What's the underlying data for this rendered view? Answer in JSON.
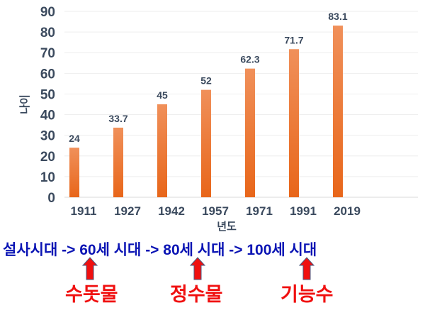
{
  "chart_data": {
    "type": "bar",
    "categories": [
      "1911",
      "1927",
      "1942",
      "1957",
      "1971",
      "1991",
      "2019"
    ],
    "values": [
      24,
      33.7,
      45,
      52,
      62.3,
      71.7,
      83.1
    ],
    "data_labels": [
      "24",
      "33.7",
      "45",
      "52",
      "62.3",
      "71.7",
      "83.1"
    ],
    "xlabel": "년도",
    "ylabel": "나이",
    "ylim": [
      0,
      90
    ],
    "yticks": [
      0,
      10,
      20,
      30,
      40,
      50,
      60,
      70,
      80,
      90
    ],
    "grid": true,
    "bar_color": "#f07b2c"
  },
  "annotation": {
    "eras": "설사시대 -> 60세 시대 -> 80세 시대 -> 100세 시대",
    "labels": [
      "수돗물",
      "정수물",
      "기능수"
    ],
    "era_color": "#0a14b4",
    "label_color": "#f01010",
    "arrow_color": "#f01010"
  }
}
